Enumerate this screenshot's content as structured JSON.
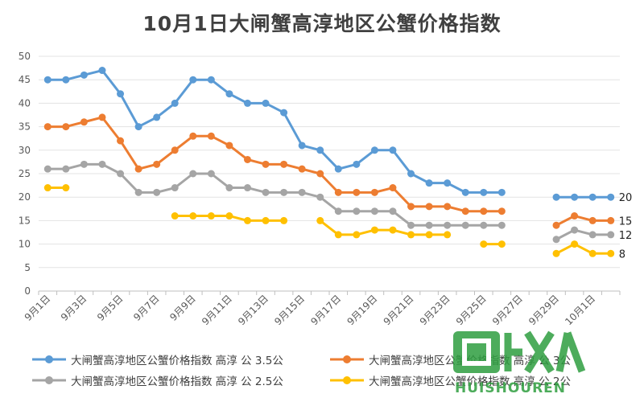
{
  "chart_data": {
    "type": "line",
    "title": "10月1日大闸蟹高淳地区公蟹价格指数",
    "x_tick_labels": [
      "9月1日",
      "9月3日",
      "9月5日",
      "9月7日",
      "9月9日",
      "9月11日",
      "9月13日",
      "9月15日",
      "9月17日",
      "9月19日",
      "9月21日",
      "9月23日",
      "9月25日",
      "9月27日",
      "9月29日",
      "10月1日"
    ],
    "ylim": [
      0,
      50
    ],
    "y_ticks": [
      0,
      5,
      10,
      15,
      20,
      25,
      30,
      35,
      40,
      45,
      50
    ],
    "grid": true,
    "legend_position": "bottom",
    "series": [
      {
        "name": "大闸蟹高淳地区公蟹价格指数 高淳 公 3.5公",
        "color": "#5B9BD5",
        "values": [
          45,
          45,
          46,
          47,
          42,
          35,
          37,
          40,
          45,
          45,
          42,
          40,
          40,
          38,
          31,
          30,
          26,
          27,
          30,
          30,
          25,
          23,
          23,
          21,
          21,
          21,
          null,
          null,
          20,
          20,
          20,
          20
        ],
        "end_label": "20"
      },
      {
        "name": "大闸蟹高淳地区公蟹价格指数 高淳 公 3公",
        "color": "#ED7D31",
        "values": [
          35,
          35,
          36,
          37,
          32,
          26,
          27,
          30,
          33,
          33,
          31,
          28,
          27,
          27,
          26,
          25,
          21,
          21,
          21,
          22,
          18,
          18,
          18,
          17,
          17,
          17,
          null,
          null,
          14,
          16,
          15,
          15
        ],
        "end_label": "15"
      },
      {
        "name": "大闸蟹高淳地区公蟹价格指数 高淳 公 2.5公",
        "color": "#A5A5A5",
        "values": [
          26,
          26,
          27,
          27,
          25,
          21,
          21,
          22,
          25,
          25,
          22,
          22,
          21,
          21,
          21,
          20,
          17,
          17,
          17,
          17,
          14,
          14,
          14,
          14,
          14,
          14,
          null,
          null,
          11,
          13,
          12,
          12
        ],
        "end_label": "12"
      },
      {
        "name": "大闸蟹高淳地区公蟹价格指数 高淳 公 2公",
        "color": "#FFC000",
        "values": [
          22,
          22,
          null,
          null,
          null,
          null,
          null,
          16,
          16,
          16,
          16,
          15,
          15,
          15,
          null,
          15,
          12,
          12,
          13,
          13,
          12,
          12,
          12,
          null,
          10,
          10,
          null,
          null,
          8,
          10,
          8,
          8
        ],
        "end_label": "8"
      }
    ]
  },
  "watermark": {
    "text": "回收人",
    "sub": "HUISHOUREN"
  }
}
